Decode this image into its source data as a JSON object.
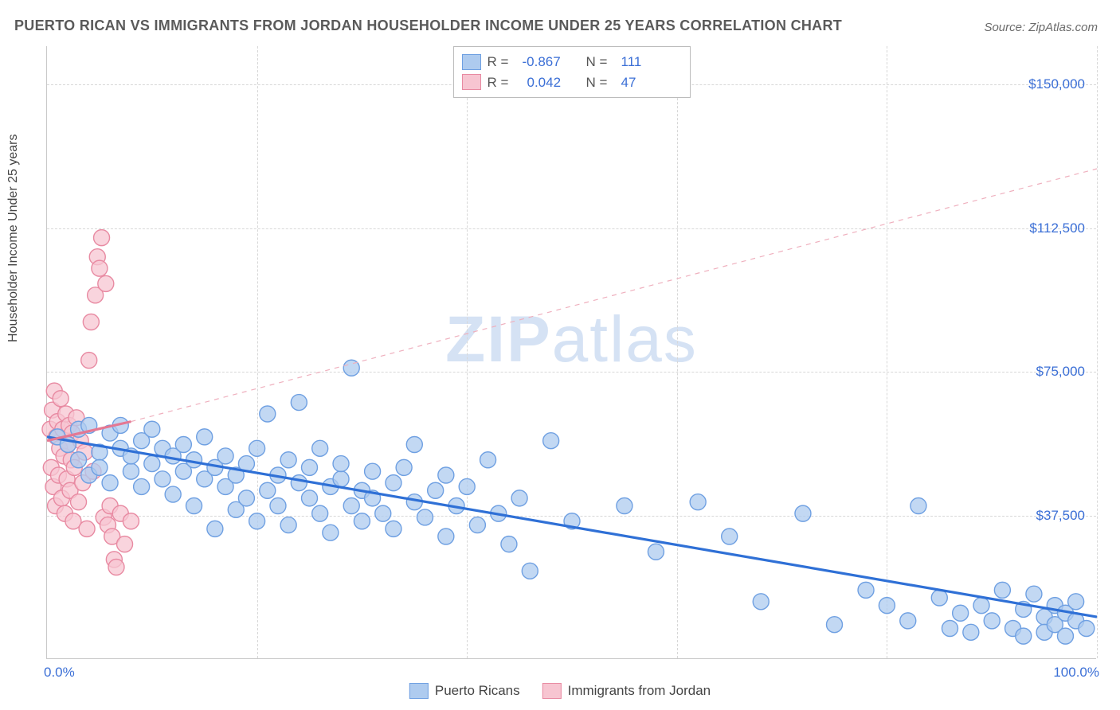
{
  "title": "PUERTO RICAN VS IMMIGRANTS FROM JORDAN HOUSEHOLDER INCOME UNDER 25 YEARS CORRELATION CHART",
  "source": "Source: ZipAtlas.com",
  "watermark_left": "ZIP",
  "watermark_right": "atlas",
  "y_axis_label": "Householder Income Under 25 years",
  "chart": {
    "type": "scatter",
    "background_color": "#ffffff",
    "grid_color": "#d7d7d7",
    "axis_color": "#c9c9c9",
    "xlim": [
      0,
      100
    ],
    "ylim": [
      0,
      160000
    ],
    "y_ticks": [
      37500,
      75000,
      112500,
      150000
    ],
    "y_tick_labels": [
      "$37,500",
      "$75,000",
      "$112,500",
      "$150,000"
    ],
    "x_tick_labels": {
      "min": "0.0%",
      "max": "100.0%"
    },
    "x_grid_positions": [
      20,
      40,
      60,
      80,
      100
    ],
    "point_radius": 10,
    "point_stroke_width": 1.4,
    "trend_line_width_solid": 3.2,
    "trend_line_width_dashed": 1.2,
    "dash_pattern": "6 6",
    "tick_label_color": "#3b6fd6",
    "tick_label_fontsize": 17
  },
  "series": [
    {
      "name": "Puerto Ricans",
      "fill": "#aecbef",
      "stroke": "#6fa0e2",
      "line_color": "#2f70d6",
      "line_style": "solid",
      "R": "-0.867",
      "N": "111",
      "trend": {
        "x1": 0,
        "y1": 58000,
        "x2": 100,
        "y2": 11000
      },
      "points": [
        [
          1,
          58000
        ],
        [
          2,
          56000
        ],
        [
          3,
          52000
        ],
        [
          3,
          60000
        ],
        [
          4,
          48000
        ],
        [
          4,
          61000
        ],
        [
          5,
          54000
        ],
        [
          5,
          50000
        ],
        [
          6,
          59000
        ],
        [
          6,
          46000
        ],
        [
          7,
          55000
        ],
        [
          7,
          61000
        ],
        [
          8,
          49000
        ],
        [
          8,
          53000
        ],
        [
          9,
          57000
        ],
        [
          9,
          45000
        ],
        [
          10,
          51000
        ],
        [
          10,
          60000
        ],
        [
          11,
          47000
        ],
        [
          11,
          55000
        ],
        [
          12,
          53000
        ],
        [
          12,
          43000
        ],
        [
          13,
          56000
        ],
        [
          13,
          49000
        ],
        [
          14,
          40000
        ],
        [
          14,
          52000
        ],
        [
          15,
          47000
        ],
        [
          15,
          58000
        ],
        [
          16,
          34000
        ],
        [
          16,
          50000
        ],
        [
          17,
          45000
        ],
        [
          17,
          53000
        ],
        [
          18,
          39000
        ],
        [
          18,
          48000
        ],
        [
          19,
          51000
        ],
        [
          19,
          42000
        ],
        [
          20,
          36000
        ],
        [
          20,
          55000
        ],
        [
          21,
          64000
        ],
        [
          21,
          44000
        ],
        [
          22,
          48000
        ],
        [
          22,
          40000
        ],
        [
          23,
          52000
        ],
        [
          23,
          35000
        ],
        [
          24,
          67000
        ],
        [
          24,
          46000
        ],
        [
          25,
          42000
        ],
        [
          25,
          50000
        ],
        [
          26,
          38000
        ],
        [
          26,
          55000
        ],
        [
          27,
          45000
        ],
        [
          27,
          33000
        ],
        [
          28,
          47000
        ],
        [
          28,
          51000
        ],
        [
          29,
          76000
        ],
        [
          29,
          40000
        ],
        [
          30,
          44000
        ],
        [
          30,
          36000
        ],
        [
          31,
          49000
        ],
        [
          31,
          42000
        ],
        [
          32,
          38000
        ],
        [
          33,
          46000
        ],
        [
          33,
          34000
        ],
        [
          34,
          50000
        ],
        [
          35,
          41000
        ],
        [
          35,
          56000
        ],
        [
          36,
          37000
        ],
        [
          37,
          44000
        ],
        [
          38,
          48000
        ],
        [
          38,
          32000
        ],
        [
          39,
          40000
        ],
        [
          40,
          45000
        ],
        [
          41,
          35000
        ],
        [
          42,
          52000
        ],
        [
          43,
          38000
        ],
        [
          44,
          30000
        ],
        [
          45,
          42000
        ],
        [
          46,
          23000
        ],
        [
          48,
          57000
        ],
        [
          50,
          36000
        ],
        [
          55,
          40000
        ],
        [
          58,
          28000
        ],
        [
          62,
          41000
        ],
        [
          65,
          32000
        ],
        [
          68,
          15000
        ],
        [
          72,
          38000
        ],
        [
          75,
          9000
        ],
        [
          78,
          18000
        ],
        [
          80,
          14000
        ],
        [
          82,
          10000
        ],
        [
          83,
          40000
        ],
        [
          85,
          16000
        ],
        [
          86,
          8000
        ],
        [
          87,
          12000
        ],
        [
          88,
          7000
        ],
        [
          89,
          14000
        ],
        [
          90,
          10000
        ],
        [
          91,
          18000
        ],
        [
          92,
          8000
        ],
        [
          93,
          13000
        ],
        [
          93,
          6000
        ],
        [
          94,
          17000
        ],
        [
          95,
          11000
        ],
        [
          95,
          7000
        ],
        [
          96,
          14000
        ],
        [
          96,
          9000
        ],
        [
          97,
          12000
        ],
        [
          97,
          6000
        ],
        [
          98,
          15000
        ],
        [
          98,
          10000
        ],
        [
          99,
          8000
        ]
      ]
    },
    {
      "name": "Immigrants from Jordan",
      "fill": "#f7c5d1",
      "stroke": "#e88aa2",
      "line_color": "#e47893",
      "line_color_dashed": "#efb0be",
      "line_style": "solid_then_dashed",
      "R": "0.042",
      "N": "47",
      "trend_solid": {
        "x1": 0,
        "y1": 57000,
        "x2": 8,
        "y2": 62000
      },
      "trend_dashed": {
        "x1": 8,
        "y1": 62000,
        "x2": 100,
        "y2": 128000
      },
      "points": [
        [
          0.3,
          60000
        ],
        [
          0.4,
          50000
        ],
        [
          0.5,
          65000
        ],
        [
          0.6,
          45000
        ],
        [
          0.7,
          70000
        ],
        [
          0.8,
          40000
        ],
        [
          0.9,
          58000
        ],
        [
          1.0,
          62000
        ],
        [
          1.1,
          48000
        ],
        [
          1.2,
          55000
        ],
        [
          1.3,
          68000
        ],
        [
          1.4,
          42000
        ],
        [
          1.5,
          60000
        ],
        [
          1.6,
          53000
        ],
        [
          1.7,
          38000
        ],
        [
          1.8,
          64000
        ],
        [
          1.9,
          47000
        ],
        [
          2.0,
          56000
        ],
        [
          2.1,
          61000
        ],
        [
          2.2,
          44000
        ],
        [
          2.3,
          52000
        ],
        [
          2.4,
          59000
        ],
        [
          2.5,
          36000
        ],
        [
          2.6,
          50000
        ],
        [
          2.8,
          63000
        ],
        [
          3.0,
          41000
        ],
        [
          3.2,
          57000
        ],
        [
          3.4,
          46000
        ],
        [
          3.6,
          54000
        ],
        [
          3.8,
          34000
        ],
        [
          4.0,
          78000
        ],
        [
          4.2,
          88000
        ],
        [
          4.4,
          49000
        ],
        [
          4.6,
          95000
        ],
        [
          4.8,
          105000
        ],
        [
          5.0,
          102000
        ],
        [
          5.2,
          110000
        ],
        [
          5.4,
          37000
        ],
        [
          5.6,
          98000
        ],
        [
          5.8,
          35000
        ],
        [
          6.0,
          40000
        ],
        [
          6.2,
          32000
        ],
        [
          6.4,
          26000
        ],
        [
          6.6,
          24000
        ],
        [
          7.0,
          38000
        ],
        [
          7.4,
          30000
        ],
        [
          8.0,
          36000
        ]
      ]
    }
  ],
  "stats_box": {
    "label_R": "R =",
    "label_N": "N ="
  },
  "bottom_legend": {
    "items": [
      "Puerto Ricans",
      "Immigrants from Jordan"
    ]
  }
}
